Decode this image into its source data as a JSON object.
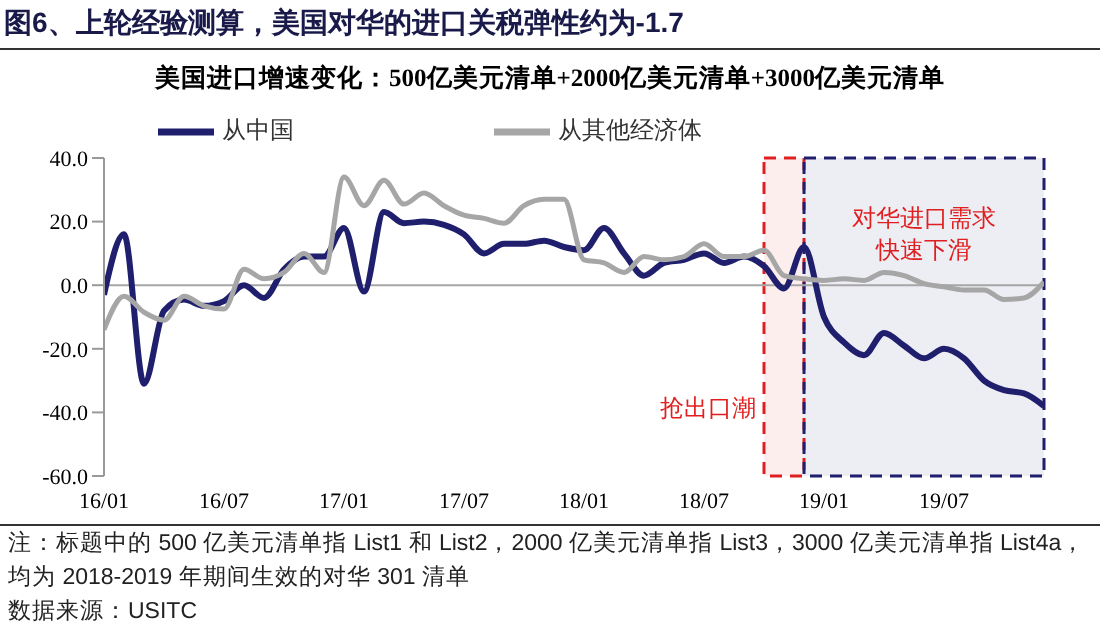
{
  "chart_data": {
    "type": "line",
    "title": "图6、上轮经验测算，美国对华的进口关税弹性约为-1.7",
    "subtitle": "美国进口增速变化：500亿美元清单+2000亿美元清单+3000亿美元清单",
    "x": [
      "2016-01",
      "2016-02",
      "2016-03",
      "2016-04",
      "2016-05",
      "2016-06",
      "2016-07",
      "2016-08",
      "2016-09",
      "2016-10",
      "2016-11",
      "2016-12",
      "2017-01",
      "2017-02",
      "2017-03",
      "2017-04",
      "2017-05",
      "2017-06",
      "2017-07",
      "2017-08",
      "2017-09",
      "2017-10",
      "2017-11",
      "2017-12",
      "2018-01",
      "2018-02",
      "2018-03",
      "2018-04",
      "2018-05",
      "2018-06",
      "2018-07",
      "2018-08",
      "2018-09",
      "2018-10",
      "2018-11",
      "2018-12",
      "2019-01",
      "2019-02",
      "2019-03",
      "2019-04",
      "2019-05",
      "2019-06",
      "2019-07",
      "2019-08",
      "2019-09",
      "2019-10",
      "2019-11",
      "2019-12"
    ],
    "series": [
      {
        "name": "从中国",
        "color": "#1f1f6e",
        "values": [
          -3,
          16,
          -31,
          -8,
          -4.5,
          -6.5,
          -5,
          0,
          -4,
          5,
          9,
          9,
          18,
          -2,
          23,
          19.5,
          20,
          19,
          16,
          10,
          13,
          13,
          14,
          12,
          11,
          18,
          10,
          3,
          7,
          8,
          10,
          7,
          9,
          6,
          -1,
          12,
          -10,
          -18,
          -22,
          -15,
          -19,
          -23,
          -20,
          -23,
          -30,
          -33,
          -34,
          -38
        ]
      },
      {
        "name": "从其他经济体",
        "color": "#a6a6a6",
        "values": [
          -14,
          -3.5,
          -8.5,
          -11,
          -3.5,
          -6.5,
          -7.5,
          5,
          2,
          4,
          10,
          4,
          34,
          25,
          33,
          25.5,
          29,
          25,
          22,
          21,
          19.5,
          25,
          27,
          27,
          8,
          7,
          4,
          9,
          8,
          9,
          13,
          9,
          9,
          11,
          3,
          2,
          1.5,
          2,
          1.5,
          4,
          3,
          0.5,
          -0.5,
          -1.5,
          -1.5,
          -4.5,
          -4,
          1
        ]
      }
    ],
    "xlim": [
      "2016-01",
      "2019-12"
    ],
    "xticks": [
      {
        "value": "2016-01",
        "label": "16/01"
      },
      {
        "value": "2016-07",
        "label": "16/07"
      },
      {
        "value": "2017-01",
        "label": "17/01"
      },
      {
        "value": "2017-07",
        "label": "17/07"
      },
      {
        "value": "2018-01",
        "label": "18/01"
      },
      {
        "value": "2018-07",
        "label": "18/07"
      },
      {
        "value": "2019-01",
        "label": "19/01"
      },
      {
        "value": "2019-07",
        "label": "19/07"
      }
    ],
    "ylim": [
      -60,
      40
    ],
    "yticks": [
      {
        "value": -60,
        "label": "-60.0"
      },
      {
        "value": -40,
        "label": "-40.0"
      },
      {
        "value": -20,
        "label": "-20.0"
      },
      {
        "value": 0,
        "label": "0.0"
      },
      {
        "value": 20,
        "label": "20.0"
      },
      {
        "value": 40,
        "label": "40.0"
      }
    ],
    "ref_lines": [
      {
        "axis": "y",
        "value": 0,
        "color": "#a6a6a6"
      }
    ],
    "bands": [
      {
        "axis": "x",
        "from": "2018-10",
        "to": "2018-12",
        "label": "抢出口潮",
        "color": "#e02020"
      },
      {
        "axis": "x",
        "from": "2018-12",
        "to": "2019-12",
        "label": "对华进口需求快速下滑",
        "color": "#1f1f6e"
      }
    ],
    "annotations": [
      "注：标题中的 500 亿美元清单指 List1 和 List2，2000 亿美元清单指 List3，3000 亿美元清单指 List4a，均为 2018-2019 年期间生效的对华 301 清单",
      "数据来源：USITC"
    ],
    "legend": "top",
    "grid": false,
    "marker": "none",
    "line_style": "solid"
  }
}
